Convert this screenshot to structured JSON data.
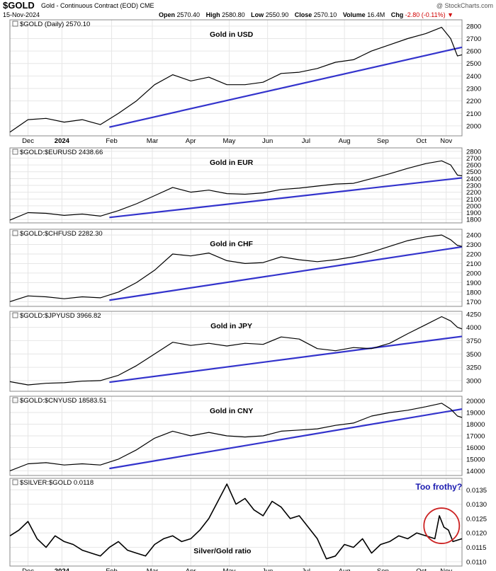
{
  "header": {
    "symbol": "$GOLD",
    "subtitle": "Gold - Continuous Contract (EOD) CME",
    "date": "15-Nov-2024",
    "credit": "@ StockCharts.com",
    "open_label": "Open",
    "open": "2570.40",
    "high_label": "High",
    "high": "2580.80",
    "low_label": "Low",
    "low": "2550.90",
    "close_label": "Close",
    "close": "2570.10",
    "volume_label": "Volume",
    "volume": "16.4M",
    "chg_label": "Chg",
    "chg": "-2.80 (-0.11%)",
    "down_color": "#d00000"
  },
  "colors": {
    "trendline": "#3333cc",
    "price": "#000000",
    "circle": "#cc2222",
    "annotation": "#1a1ab0",
    "grid": "#e6e6e6"
  },
  "x_axis": {
    "labels": [
      "Dec",
      "2024",
      "Feb",
      "Mar",
      "Apr",
      "May",
      "Jun",
      "Jul",
      "Aug",
      "Sep",
      "Oct",
      "Nov"
    ],
    "bold_label": "2024"
  },
  "chart_data": [
    {
      "type": "line",
      "legend": "$GOLD (Daily) 2570.10",
      "label": "Gold in USD",
      "ylim": [
        1920,
        2850
      ],
      "yticks": [
        2000,
        2100,
        2200,
        2300,
        2400,
        2500,
        2600,
        2700,
        2800
      ],
      "x": [
        0,
        0.04,
        0.08,
        0.12,
        0.16,
        0.2,
        0.24,
        0.28,
        0.32,
        0.36,
        0.4,
        0.44,
        0.48,
        0.52,
        0.56,
        0.6,
        0.64,
        0.68,
        0.72,
        0.76,
        0.8,
        0.84,
        0.88,
        0.92,
        0.955,
        0.975,
        0.99,
        1
      ],
      "values": [
        1950,
        2050,
        2060,
        2030,
        2050,
        2010,
        2100,
        2200,
        2330,
        2410,
        2360,
        2390,
        2330,
        2330,
        2350,
        2420,
        2430,
        2460,
        2510,
        2530,
        2600,
        2650,
        2700,
        2740,
        2790,
        2700,
        2560,
        2570
      ],
      "trendline": {
        "x": [
          0.22,
          1
        ],
        "values": [
          1990,
          2630
        ]
      }
    },
    {
      "type": "line",
      "legend": "$GOLD:$EURUSD 2438.66",
      "label": "Gold in EUR",
      "ylim": [
        1750,
        2850
      ],
      "yticks": [
        1800,
        1900,
        2000,
        2100,
        2200,
        2300,
        2400,
        2500,
        2600,
        2700,
        2800
      ],
      "x": [
        0,
        0.04,
        0.08,
        0.12,
        0.16,
        0.2,
        0.24,
        0.28,
        0.32,
        0.36,
        0.4,
        0.44,
        0.48,
        0.52,
        0.56,
        0.6,
        0.64,
        0.68,
        0.72,
        0.76,
        0.8,
        0.84,
        0.88,
        0.92,
        0.955,
        0.975,
        0.99,
        1
      ],
      "values": [
        1790,
        1900,
        1890,
        1860,
        1880,
        1850,
        1930,
        2030,
        2150,
        2270,
        2200,
        2230,
        2180,
        2170,
        2190,
        2240,
        2260,
        2290,
        2320,
        2330,
        2400,
        2470,
        2550,
        2620,
        2660,
        2600,
        2450,
        2440
      ],
      "trendline": {
        "x": [
          0.22,
          1
        ],
        "values": [
          1830,
          2410
        ]
      }
    },
    {
      "type": "line",
      "legend": "$GOLD:$CHFUSD 2282.30",
      "label": "Gold in CHF",
      "ylim": [
        1650,
        2460
      ],
      "yticks": [
        1700,
        1800,
        1900,
        2000,
        2100,
        2200,
        2300,
        2400
      ],
      "x": [
        0,
        0.04,
        0.08,
        0.12,
        0.16,
        0.2,
        0.24,
        0.28,
        0.32,
        0.36,
        0.4,
        0.44,
        0.48,
        0.52,
        0.56,
        0.6,
        0.64,
        0.68,
        0.72,
        0.76,
        0.8,
        0.84,
        0.88,
        0.92,
        0.955,
        0.975,
        0.99,
        1
      ],
      "values": [
        1700,
        1760,
        1750,
        1730,
        1750,
        1740,
        1800,
        1900,
        2030,
        2200,
        2180,
        2210,
        2130,
        2100,
        2110,
        2170,
        2140,
        2120,
        2140,
        2170,
        2220,
        2280,
        2340,
        2380,
        2400,
        2350,
        2290,
        2280
      ],
      "trendline": {
        "x": [
          0.22,
          1
        ],
        "values": [
          1715,
          2275
        ]
      }
    },
    {
      "type": "line",
      "legend": "$GOLD:$JPYUSD 3966.82",
      "label": "Gold in JPY",
      "ylim": [
        2800,
        4300
      ],
      "yticks": [
        3000,
        3250,
        3500,
        3750,
        4000,
        4250
      ],
      "x": [
        0,
        0.04,
        0.08,
        0.12,
        0.16,
        0.2,
        0.24,
        0.28,
        0.32,
        0.36,
        0.4,
        0.44,
        0.48,
        0.52,
        0.56,
        0.6,
        0.64,
        0.68,
        0.72,
        0.76,
        0.8,
        0.84,
        0.88,
        0.92,
        0.955,
        0.975,
        0.99,
        1
      ],
      "values": [
        2980,
        2920,
        2950,
        2960,
        2990,
        3000,
        3100,
        3280,
        3500,
        3720,
        3660,
        3700,
        3650,
        3700,
        3680,
        3820,
        3780,
        3600,
        3560,
        3620,
        3600,
        3700,
        3880,
        4050,
        4200,
        4120,
        4000,
        3970
      ],
      "trendline": {
        "x": [
          0.22,
          1
        ],
        "values": [
          2970,
          3830
        ]
      }
    },
    {
      "type": "line",
      "legend": "$GOLD:$CNYUSD 18583.51",
      "label": "Gold in CNY",
      "ylim": [
        13600,
        20400
      ],
      "yticks": [
        14000,
        15000,
        16000,
        17000,
        18000,
        19000,
        20000
      ],
      "x": [
        0,
        0.04,
        0.08,
        0.12,
        0.16,
        0.2,
        0.24,
        0.28,
        0.32,
        0.36,
        0.4,
        0.44,
        0.48,
        0.52,
        0.56,
        0.6,
        0.64,
        0.68,
        0.72,
        0.76,
        0.8,
        0.84,
        0.88,
        0.92,
        0.955,
        0.975,
        0.99,
        1
      ],
      "values": [
        14000,
        14600,
        14700,
        14500,
        14600,
        14500,
        15000,
        15800,
        16800,
        17400,
        17000,
        17300,
        17000,
        16900,
        17000,
        17400,
        17500,
        17600,
        17900,
        18100,
        18700,
        19000,
        19200,
        19500,
        19800,
        19300,
        18700,
        18580
      ],
      "trendline": {
        "x": [
          0.22,
          1
        ],
        "values": [
          14200,
          19300
        ]
      }
    },
    {
      "type": "line",
      "legend": "$SILVER:$GOLD 0.0118",
      "label": "Silver/Gold ratio",
      "ylim": [
        0.01085,
        0.0139
      ],
      "yticks": [
        0.011,
        0.0115,
        0.012,
        0.0125,
        0.013,
        0.0135
      ],
      "x": [
        0,
        0.02,
        0.04,
        0.06,
        0.08,
        0.1,
        0.12,
        0.14,
        0.16,
        0.18,
        0.2,
        0.22,
        0.24,
        0.26,
        0.28,
        0.3,
        0.32,
        0.34,
        0.36,
        0.38,
        0.4,
        0.42,
        0.44,
        0.46,
        0.48,
        0.5,
        0.52,
        0.54,
        0.56,
        0.58,
        0.6,
        0.62,
        0.64,
        0.66,
        0.68,
        0.7,
        0.72,
        0.74,
        0.76,
        0.78,
        0.8,
        0.82,
        0.84,
        0.86,
        0.88,
        0.9,
        0.92,
        0.94,
        0.95,
        0.96,
        0.97,
        0.98,
        1
      ],
      "values": [
        0.0119,
        0.0121,
        0.0124,
        0.0118,
        0.0115,
        0.0119,
        0.0117,
        0.0116,
        0.0114,
        0.0113,
        0.0112,
        0.0115,
        0.0117,
        0.0114,
        0.0113,
        0.0112,
        0.0116,
        0.0118,
        0.0119,
        0.0117,
        0.0118,
        0.0121,
        0.0125,
        0.0131,
        0.0137,
        0.013,
        0.0132,
        0.0128,
        0.0126,
        0.0131,
        0.0129,
        0.0125,
        0.0126,
        0.0122,
        0.0118,
        0.0111,
        0.0112,
        0.0116,
        0.0115,
        0.0118,
        0.0113,
        0.0116,
        0.0117,
        0.0119,
        0.0118,
        0.012,
        0.0119,
        0.0118,
        0.0126,
        0.0122,
        0.0121,
        0.0117,
        0.0118
      ],
      "annotation": {
        "text": "Too frothy?",
        "x": 0.955,
        "y": 0.01225
      }
    }
  ]
}
